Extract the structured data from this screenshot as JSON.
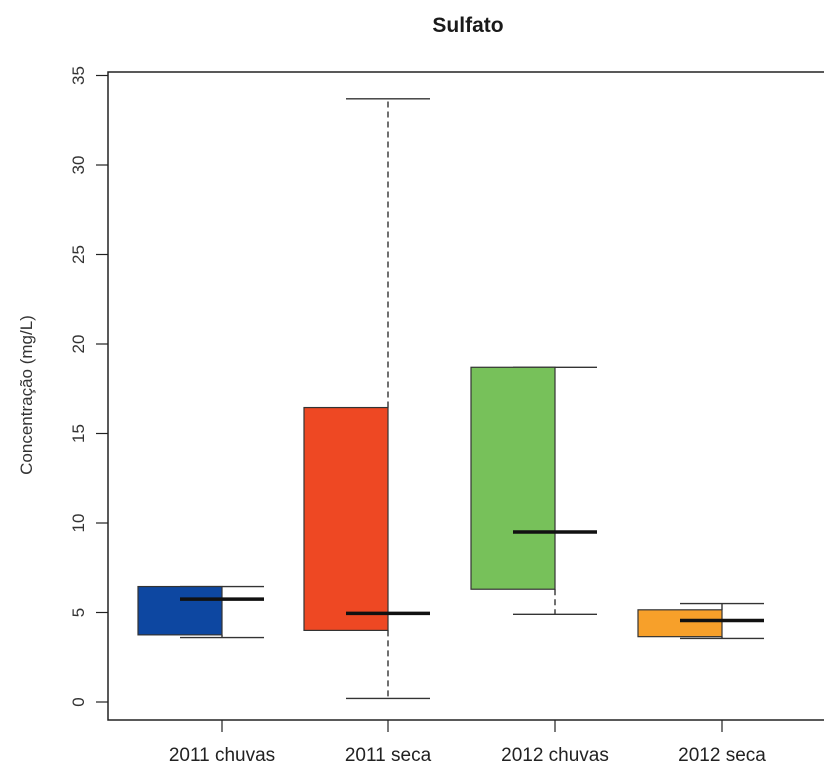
{
  "chart_data": {
    "type": "boxplot",
    "title": "Sulfato",
    "xlabel": "",
    "ylabel": "Concentração (mg/L)",
    "ylim": [
      -1,
      35
    ],
    "yticks": [
      0,
      5,
      10,
      15,
      20,
      25,
      30,
      35
    ],
    "categories": [
      "2011 chuvas",
      "2011 seca",
      "2012 chuvas",
      "2012 seca"
    ],
    "boxes": [
      {
        "category": "2011 chuvas",
        "min": 3.6,
        "q1": 3.75,
        "median": 5.75,
        "q3": 6.45,
        "max": 6.45,
        "color": "#0d47a1"
      },
      {
        "category": "2011 seca",
        "min": 0.2,
        "q1": 4.0,
        "median": 4.95,
        "q3": 16.45,
        "max": 33.7,
        "color": "#ee4823"
      },
      {
        "category": "2012 chuvas",
        "min": 4.9,
        "q1": 6.3,
        "median": 9.5,
        "q3": 18.7,
        "max": 18.7,
        "color": "#77c15a"
      },
      {
        "category": "2012 seca",
        "min": 3.55,
        "q1": 3.65,
        "median": 4.55,
        "q3": 5.15,
        "max": 5.5,
        "color": "#f7a02a"
      }
    ],
    "grid": false,
    "legend": "none"
  }
}
